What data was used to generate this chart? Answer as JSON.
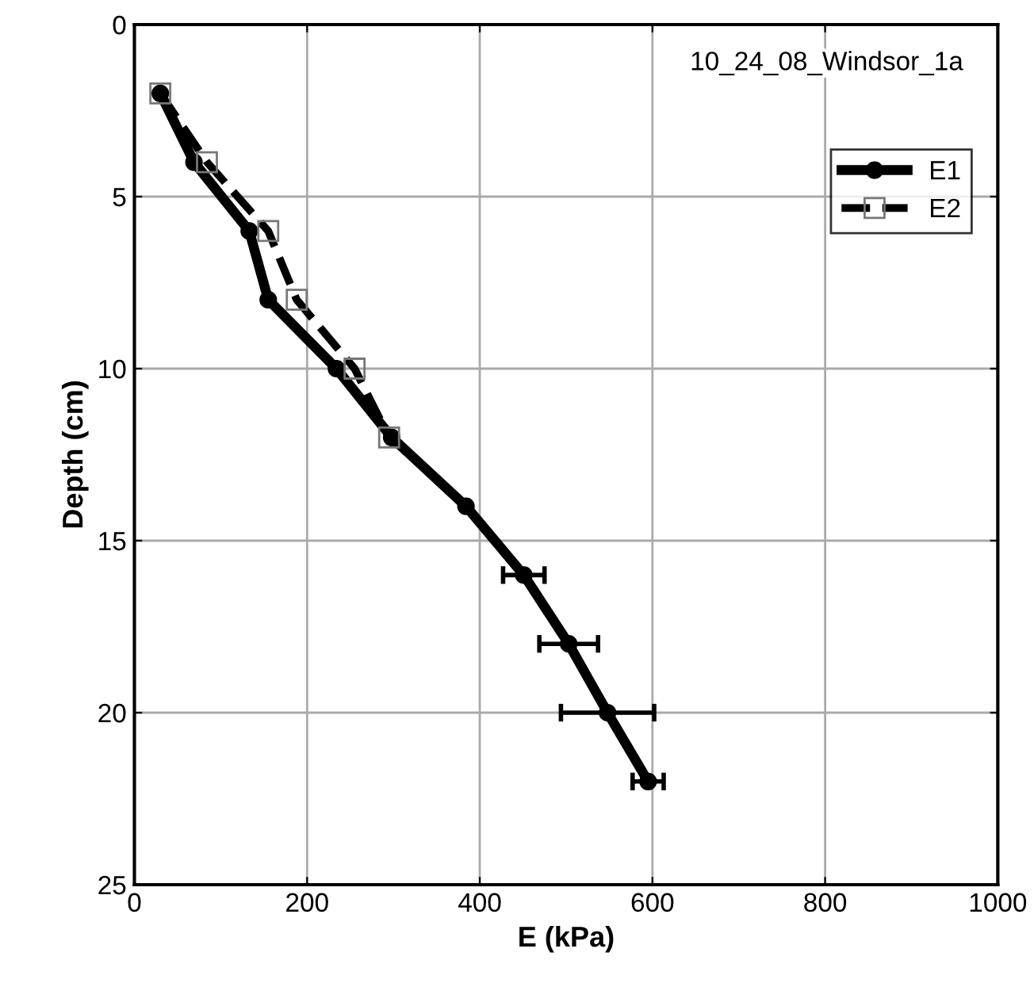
{
  "chart_data": {
    "type": "line",
    "xlabel": "E (kPa)",
    "ylabel": "Depth (cm)",
    "annotations": [
      "10_24_08_Windsor_1a"
    ],
    "xlim": [
      0,
      1000
    ],
    "xticks": [
      0,
      200,
      400,
      600,
      800,
      1000
    ],
    "ylim": [
      25,
      0
    ],
    "yticks": [
      0,
      5,
      10,
      15,
      20,
      25
    ],
    "grid": true,
    "legend": "top right",
    "series": [
      {
        "name": "E1",
        "color": "#000000",
        "marker": "circle",
        "line_style": "solid",
        "x": [
          30,
          69,
          133,
          155,
          234,
          298,
          384,
          451,
          503,
          548,
          595
        ],
        "values": [
          2,
          4,
          6,
          8,
          10,
          12,
          14,
          16,
          18,
          20,
          22
        ],
        "xerrors": [
          null,
          null,
          null,
          null,
          null,
          null,
          null,
          24,
          34,
          54,
          18
        ]
      },
      {
        "name": "E2",
        "color": "#000000",
        "marker": "square",
        "line_style": "dashed",
        "x": [
          30,
          84,
          155,
          188,
          255,
          295
        ],
        "values": [
          2,
          4,
          6,
          8,
          10,
          12
        ]
      }
    ]
  }
}
